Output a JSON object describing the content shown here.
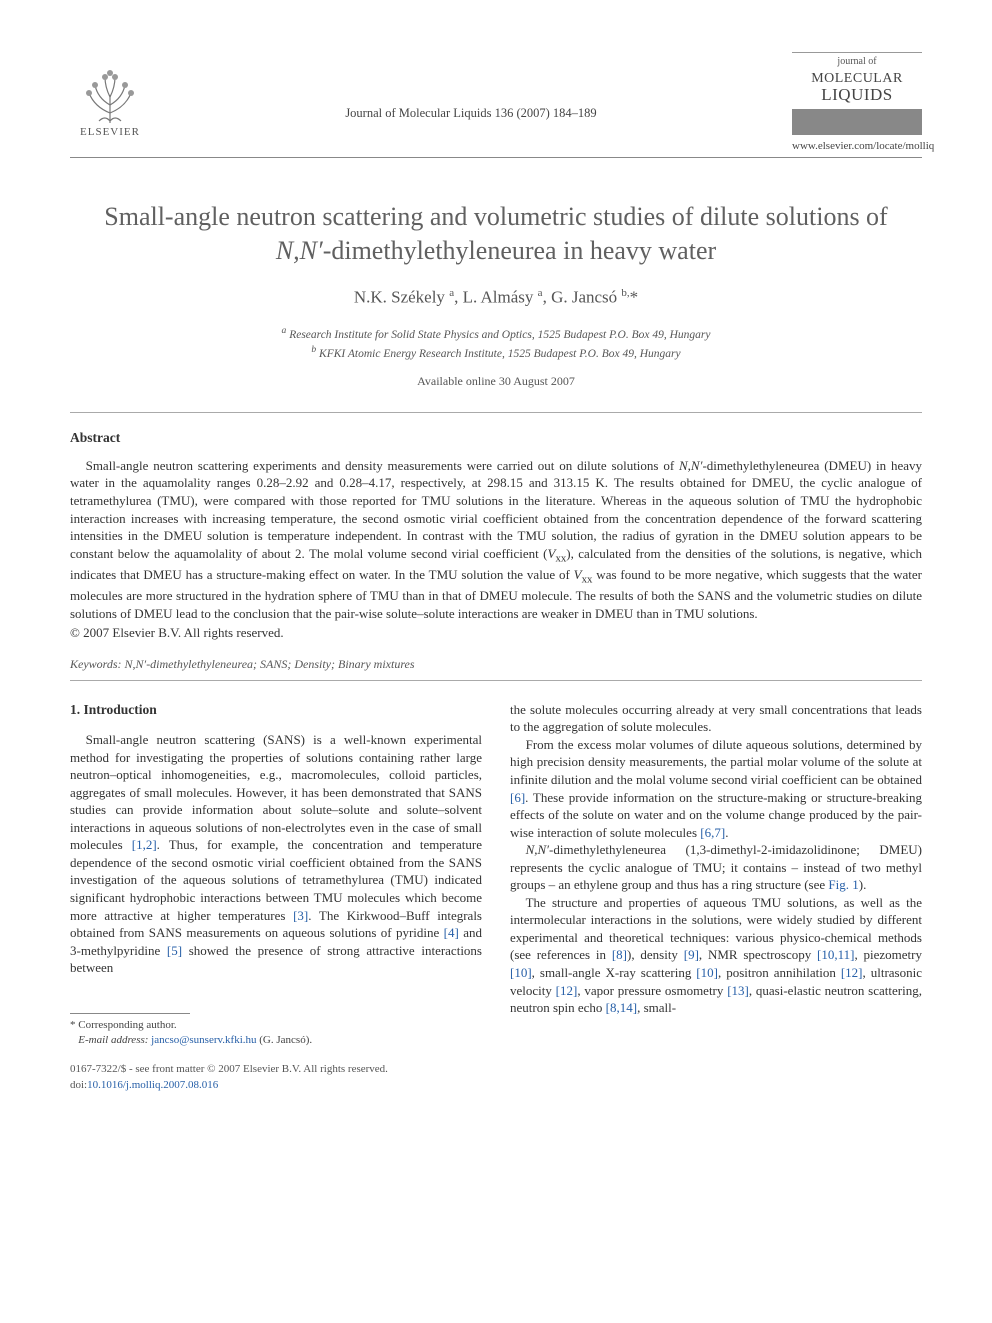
{
  "header": {
    "publisher_name": "ELSEVIER",
    "journal_ref": "Journal of Molecular Liquids 136 (2007) 184–189",
    "journal_small": "journal of",
    "journal_line1": "MOLECULAR",
    "journal_line2": "LIQUIDS",
    "journal_url": "www.elsevier.com/locate/molliq"
  },
  "article": {
    "title_html": "Small-angle neutron scattering and volumetric studies of dilute solutions of <em>N,N′</em>-dimethylethyleneurea in heavy water",
    "authors_html": "N.K. Székely&nbsp;<sup>a</sup>, L. Almásy&nbsp;<sup>a</sup>, G. Jancsó&nbsp;<sup>b,</sup>*",
    "affil_a": "Research Institute for Solid State Physics and Optics, 1525 Budapest P.O. Box 49, Hungary",
    "affil_b": "KFKI Atomic Energy Research Institute, 1525 Budapest P.O. Box 49, Hungary",
    "available": "Available online 30 August 2007"
  },
  "abstract": {
    "heading": "Abstract",
    "body_html": "Small-angle neutron scattering experiments and density measurements were carried out on dilute solutions of <em>N,N′</em>-dimethylethyleneurea (DMEU) in heavy water in the aquamolality ranges 0.28–2.92 and 0.28–4.17, respectively, at 298.15 and 313.15 K. The results obtained for DMEU, the cyclic analogue of tetramethylurea (TMU), were compared with those reported for TMU solutions in the literature. Whereas in the aqueous solution of TMU the hydrophobic interaction increases with increasing temperature, the second osmotic virial coefficient obtained from the concentration dependence of the forward scattering intensities in the DMEU solution is temperature independent. In contrast with the TMU solution, the radius of gyration in the DMEU solution appears to be constant below the aquamolality of about 2. The molal volume second virial coefficient (<em>V</em><sub>xx</sub>), calculated from the densities of the solutions, is negative, which indicates that DMEU has a structure-making effect on water. In the TMU solution the value of <em>V</em><sub>xx</sub> was found to be more negative, which suggests that the water molecules are more structured in the hydration sphere of TMU than in that of DMEU molecule. The results of both the SANS and the volumetric studies on dilute solutions of DMEU lead to the conclusion that the pair-wise solute–solute interactions are weaker in DMEU than in TMU solutions.",
    "copyright": "© 2007 Elsevier B.V. All rights reserved.",
    "keywords_html": "<em>Keywords: N,N′</em>-dimethylethyleneurea; SANS; Density; Binary mixtures"
  },
  "body": {
    "section1_head": "1. Introduction",
    "col_left_html": "Small-angle neutron scattering (SANS) is a well-known experimental method for investigating the properties of solutions containing rather large neutron–optical inhomogeneities, e.g., macromolecules, colloid particles, aggregates of small molecules. However, it has been demonstrated that SANS studies can provide information about solute–solute and solute–solvent interactions in aqueous solutions of non-electrolytes even in the case of small molecules <span class=\"cite\">[1,2]</span>. Thus, for example, the concentration and temperature dependence of the second osmotic virial coefficient obtained from the SANS investigation of the aqueous solutions of tetramethylurea (TMU) indicated significant hydrophobic interactions between TMU molecules which become more attractive at higher temperatures <span class=\"cite\">[3]</span>. The Kirkwood–Buff integrals obtained from SANS measurements on aqueous solutions of pyridine <span class=\"cite\">[4]</span> and 3-methylpyridine <span class=\"cite\">[5]</span> showed the presence of strong attractive interactions between",
    "col_right_p1": "the solute molecules occurring already at very small concentrations that leads to the aggregation of solute molecules.",
    "col_right_p2_html": "From the excess molar volumes of dilute aqueous solutions, determined by high precision density measurements, the partial molar volume of the solute at infinite dilution and the molal volume second virial coefficient can be obtained <span class=\"cite\">[6]</span>. These provide information on the structure-making or structure-breaking effects of the solute on water and on the volume change produced by the pair-wise interaction of solute molecules <span class=\"cite\">[6,7]</span>.",
    "col_right_p3_html": "<em>N,N′</em>-dimethylethyleneurea (1,3-dimethyl-2-imidazolidinone; DMEU) represents the cyclic analogue of TMU; it contains – instead of two methyl groups – an ethylene group and thus has a ring structure (see <span class=\"cite\">Fig. 1</span>).",
    "col_right_p4_html": "The structure and properties of aqueous TMU solutions, as well as the intermolecular interactions in the solutions, were widely studied by different experimental and theoretical techniques: various physico-chemical methods (see references in <span class=\"cite\">[8]</span>), density <span class=\"cite\">[9]</span>, NMR spectroscopy <span class=\"cite\">[10,11]</span>, piezometry <span class=\"cite\">[10]</span>, small-angle X-ray scattering <span class=\"cite\">[10]</span>, positron annihilation <span class=\"cite\">[12]</span>, ultrasonic velocity <span class=\"cite\">[12]</span>, vapor pressure osmometry <span class=\"cite\">[13]</span>, quasi-elastic neutron scattering, neutron spin echo <span class=\"cite\">[8,14]</span>, small-"
  },
  "footnote": {
    "corr": "* Corresponding author.",
    "email_label": "E-mail address:",
    "email": "jancso@sunserv.kfki.hu",
    "email_tail": "(G. Jancsó)."
  },
  "footer": {
    "line1": "0167-7322/$ - see front matter © 2007 Elsevier B.V. All rights reserved.",
    "doi_label": "doi:",
    "doi": "10.1016/j.molliq.2007.08.016"
  },
  "colors": {
    "link": "#2860a8",
    "text": "#333333",
    "muted": "#555555",
    "rule": "#888888"
  }
}
